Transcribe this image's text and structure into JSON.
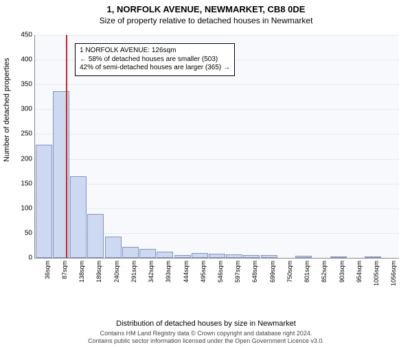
{
  "title": "1, NORFOLK AVENUE, NEWMARKET, CB8 0DE",
  "subtitle": "Size of property relative to detached houses in Newmarket",
  "ylabel": "Number of detached properties",
  "xlabel": "Distribution of detached houses by size in Newmarket",
  "chart": {
    "type": "histogram",
    "ylim": [
      0,
      450
    ],
    "ytick_step": 50,
    "background_color": "#f7f9fc",
    "grid_color": "#e6e9ef",
    "bar_fill": "#cdd9f0",
    "bar_border": "#7f93c4",
    "marker_color": "#d02020",
    "marker_x_value": 126,
    "x_start": 36,
    "x_step": 51,
    "x_tick_count": 21,
    "x_unit": "sqm",
    "values": [
      228,
      337,
      165,
      88,
      43,
      22,
      18,
      12,
      5,
      10,
      8,
      7,
      6,
      5,
      0,
      4,
      0,
      3,
      0,
      2,
      0
    ]
  },
  "annotation": {
    "line1": "1 NORFOLK AVENUE: 126sqm",
    "line2": "← 58% of detached houses are smaller (503)",
    "line3": "42% of semi-detached houses are larger (365) →"
  },
  "footnote_line1": "Contains HM Land Registry data © Crown copyright and database right 2024.",
  "footnote_line2": "Contains public sector information licensed under the Open Government Licence v3.0."
}
